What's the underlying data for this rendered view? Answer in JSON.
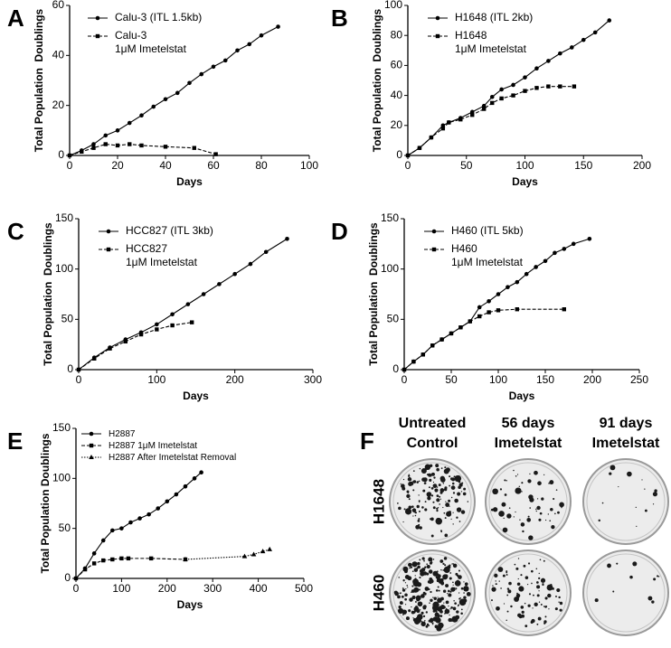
{
  "chart_data": [
    {
      "type": "line",
      "panel": "A",
      "xlabel": "Days",
      "ylabel": "Total Population  Doublings",
      "xlim": [
        0,
        100
      ],
      "ylim": [
        0,
        60
      ],
      "xticks": [
        0,
        20,
        40,
        60,
        80,
        100
      ],
      "yticks": [
        0,
        20,
        40,
        60
      ],
      "series": [
        {
          "name": "Calu-3 (ITL 1.5kb)",
          "color": "#000000",
          "line_style": "solid",
          "marker": "circle",
          "x": [
            0,
            5,
            10,
            15,
            20,
            25,
            30,
            35,
            40,
            45,
            50,
            55,
            60,
            65,
            70,
            75,
            80,
            87
          ],
          "values": [
            0,
            2,
            4.5,
            8,
            10,
            13,
            16,
            19.5,
            22.5,
            25,
            29,
            32.5,
            35.5,
            38,
            42,
            44.5,
            48,
            51.5
          ]
        },
        {
          "name": "Calu-3\n1μM Imetelstat",
          "color": "#000000",
          "line_style": "dashed",
          "marker": "square",
          "x": [
            0,
            5,
            10,
            15,
            20,
            25,
            30,
            40,
            52,
            61
          ],
          "values": [
            0,
            1.5,
            3,
            4.5,
            4,
            4.5,
            4,
            3.5,
            3,
            0.5
          ]
        }
      ]
    },
    {
      "type": "line",
      "panel": "B",
      "xlabel": "Days",
      "ylabel": "Total Population  Doublings",
      "xlim": [
        0,
        200
      ],
      "ylim": [
        0,
        100
      ],
      "xticks": [
        0,
        50,
        100,
        150,
        200
      ],
      "yticks": [
        0,
        20,
        40,
        60,
        80,
        100
      ],
      "series": [
        {
          "name": "H1648 (ITL 2kb)",
          "color": "#000000",
          "line_style": "solid",
          "marker": "circle",
          "x": [
            0,
            10,
            20,
            30,
            35,
            45,
            55,
            65,
            72,
            80,
            90,
            100,
            110,
            120,
            130,
            140,
            150,
            160,
            172
          ],
          "values": [
            0,
            5,
            12,
            20,
            22,
            25,
            29,
            33,
            39,
            44,
            47,
            52,
            58,
            63,
            68,
            72,
            77,
            82,
            90
          ]
        },
        {
          "name": "H1648\n1μM Imetelstat",
          "color": "#000000",
          "line_style": "dashed",
          "marker": "square",
          "x": [
            0,
            10,
            20,
            30,
            35,
            45,
            55,
            65,
            72,
            80,
            90,
            100,
            110,
            120,
            130,
            142
          ],
          "values": [
            0,
            5,
            12,
            18,
            22,
            24,
            27,
            31,
            35,
            38,
            40,
            43,
            45,
            46,
            46,
            46
          ]
        }
      ]
    },
    {
      "type": "line",
      "panel": "C",
      "xlabel": "Days",
      "ylabel": "Total Population  Doublings",
      "xlim": [
        0,
        300
      ],
      "ylim": [
        0,
        150
      ],
      "xticks": [
        0,
        100,
        200,
        300
      ],
      "yticks": [
        0,
        50,
        100,
        150
      ],
      "series": [
        {
          "name": "HCC827 (ITL 3kb)",
          "color": "#000000",
          "line_style": "solid",
          "marker": "circle",
          "x": [
            0,
            20,
            40,
            60,
            80,
            100,
            120,
            140,
            160,
            180,
            200,
            220,
            240,
            267
          ],
          "values": [
            0,
            12,
            22,
            30,
            37,
            45,
            55,
            65,
            75,
            85,
            95,
            105,
            117,
            130
          ]
        },
        {
          "name": "HCC827\n1μM Imetelstat",
          "color": "#000000",
          "line_style": "dashed",
          "marker": "square",
          "x": [
            0,
            20,
            40,
            60,
            80,
            100,
            120,
            145
          ],
          "values": [
            0,
            11,
            21,
            28,
            35,
            40,
            44,
            47
          ]
        }
      ]
    },
    {
      "type": "line",
      "panel": "D",
      "xlabel": "Days",
      "ylabel": "Total Population  Doublings",
      "xlim": [
        0,
        250
      ],
      "ylim": [
        0,
        150
      ],
      "xticks": [
        0,
        50,
        100,
        150,
        200,
        250
      ],
      "yticks": [
        0,
        50,
        100,
        150
      ],
      "series": [
        {
          "name": "H460 (ITL 5kb)",
          "color": "#000000",
          "line_style": "solid",
          "marker": "circle",
          "x": [
            0,
            10,
            20,
            30,
            40,
            50,
            60,
            70,
            80,
            90,
            100,
            110,
            120,
            130,
            140,
            150,
            160,
            170,
            180,
            197
          ],
          "values": [
            0,
            8,
            15,
            24,
            30,
            36,
            42,
            48,
            62,
            68,
            75,
            82,
            87,
            95,
            102,
            108,
            116,
            120,
            125,
            130
          ]
        },
        {
          "name": "H460\n1μM Imetelstat",
          "color": "#000000",
          "line_style": "dashed",
          "marker": "square",
          "x": [
            0,
            10,
            20,
            30,
            40,
            50,
            60,
            70,
            80,
            90,
            100,
            120,
            170
          ],
          "values": [
            0,
            8,
            15,
            24,
            30,
            36,
            42,
            48,
            53,
            57,
            59,
            60,
            60
          ]
        }
      ]
    },
    {
      "type": "line",
      "panel": "E",
      "xlabel": "Days",
      "ylabel": "Total Population Doublings",
      "xlim": [
        0,
        500
      ],
      "ylim": [
        0,
        150
      ],
      "xticks": [
        0,
        100,
        200,
        300,
        400,
        500
      ],
      "yticks": [
        0,
        50,
        100,
        150
      ],
      "series": [
        {
          "name": "H2887",
          "color": "#000000",
          "line_style": "solid",
          "marker": "circle",
          "x": [
            0,
            20,
            40,
            60,
            80,
            100,
            120,
            140,
            160,
            180,
            200,
            220,
            240,
            260,
            275
          ],
          "values": [
            0,
            10,
            25,
            38,
            48,
            50,
            56,
            60,
            64,
            70,
            77,
            84,
            92,
            100,
            106
          ]
        },
        {
          "name": "H2887 1μM Imetelstat",
          "color": "#000000",
          "line_style": "dashed",
          "marker": "square",
          "x": [
            0,
            20,
            40,
            60,
            80,
            100,
            115,
            165,
            240
          ],
          "values": [
            0,
            9,
            15,
            18,
            19,
            20,
            20,
            20,
            19
          ]
        },
        {
          "name": "H2887 After Imetelstat Removal",
          "color": "#000000",
          "line_style": "dotted",
          "marker": "triangle",
          "x": [
            240,
            370,
            390,
            410,
            425
          ],
          "values": [
            19,
            22,
            24,
            27,
            29
          ]
        }
      ]
    }
  ],
  "panel_f": {
    "panel": "F",
    "columns": [
      [
        "Untreated",
        "Control"
      ],
      [
        "56 days",
        "Imetelstat"
      ],
      [
        "91 days",
        "Imetelstat"
      ]
    ],
    "rows": [
      "H1648",
      "H460"
    ]
  }
}
